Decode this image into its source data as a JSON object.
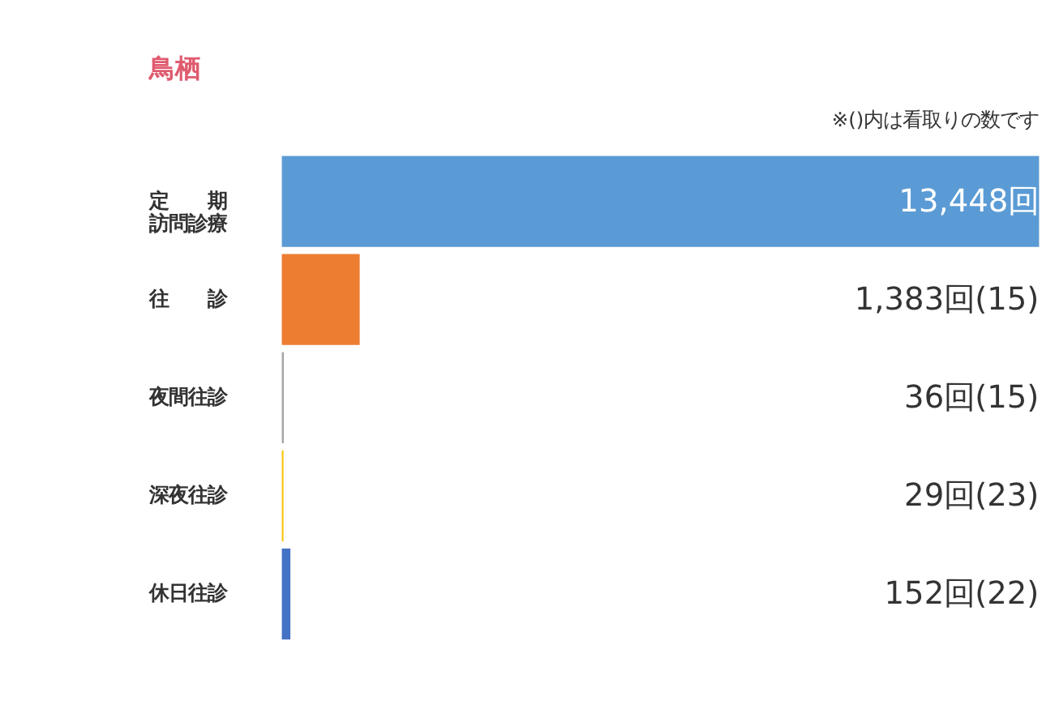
{
  "chart_data": {
    "type": "bar",
    "orientation": "horizontal",
    "title": "鳥栖",
    "annotations": [
      "※()内は看取りの数です"
    ],
    "categories": [
      "定　　期訪問診療",
      "往　　診",
      "夜間往診",
      "深夜往診",
      "休日往診"
    ],
    "values": [
      13448,
      1383,
      36,
      29,
      152
    ],
    "colors": [
      "#5b9bd5",
      "#ed7d31",
      "#a5a5a5",
      "#ffc000",
      "#4472c4"
    ],
    "value_labels": [
      "13,448回",
      "1,383回(15)",
      "36回(15)",
      "29回(23)",
      "152回(22)"
    ]
  }
}
